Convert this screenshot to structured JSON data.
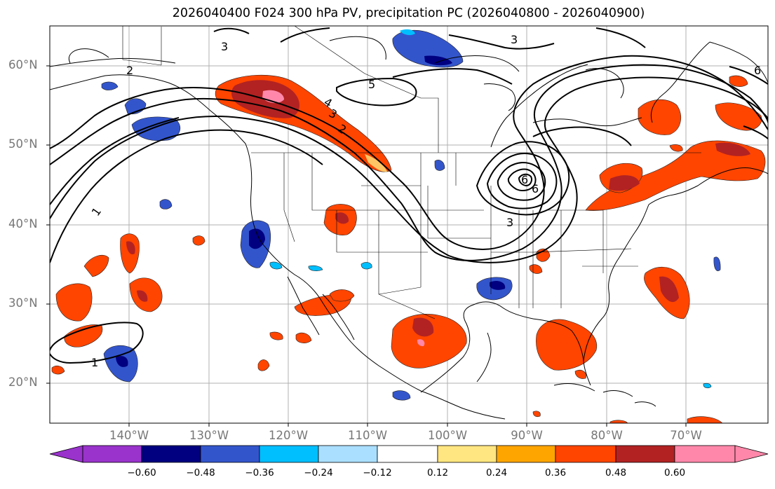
{
  "title": "2026040400 F024 300 hPa PV, precipitation PC (2026040800 - 2026040900)",
  "map": {
    "lat_labels": [
      "60°N",
      "50°N",
      "40°N",
      "30°N",
      "20°N"
    ],
    "lon_labels": [
      "140°W",
      "130°W",
      "120°W",
      "110°W",
      "100°W",
      "90°W",
      "80°W",
      "70°W"
    ],
    "contour_labels": [
      "1",
      "1",
      "2",
      "2",
      "3",
      "3",
      "3",
      "3",
      "4",
      "5",
      "6",
      "6",
      "6"
    ]
  },
  "colorbar": {
    "ticks": [
      "−0.60",
      "−0.48",
      "−0.36",
      "−0.24",
      "−0.12",
      "0.12",
      "0.24",
      "0.36",
      "0.48",
      "0.60"
    ],
    "colors": [
      "#9933cc",
      "#000080",
      "#3355cc",
      "#00bfff",
      "#aadfff",
      "#ffffff",
      "#ffe680",
      "#ffa500",
      "#ff4500",
      "#b22222",
      "#ff88aa"
    ]
  }
}
